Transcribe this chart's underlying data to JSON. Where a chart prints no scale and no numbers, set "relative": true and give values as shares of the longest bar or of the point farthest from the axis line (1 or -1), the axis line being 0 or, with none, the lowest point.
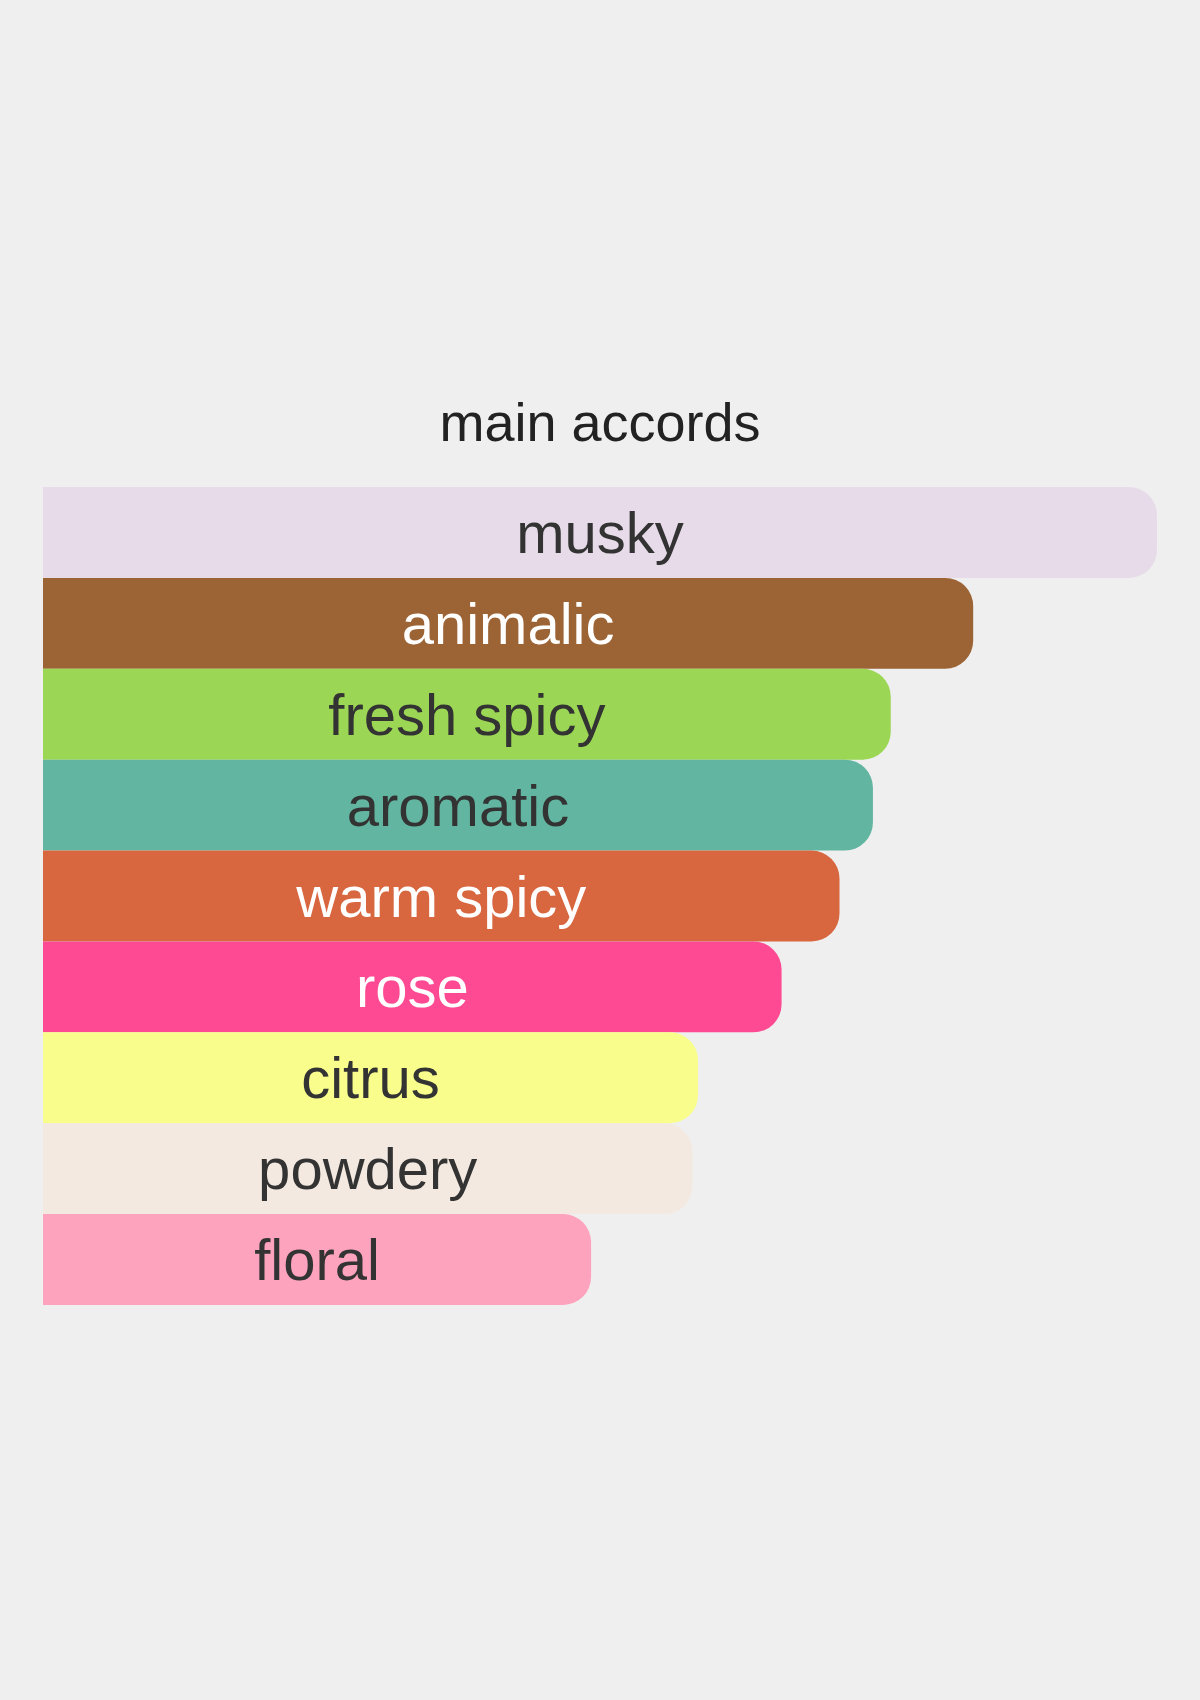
{
  "chart_data": {
    "type": "bar",
    "orientation": "horizontal",
    "relative": true,
    "title": "main accords",
    "categories": [
      "musky",
      "animalic",
      "fresh spicy",
      "aromatic",
      "warm spicy",
      "rose",
      "citrus",
      "powdery",
      "floral"
    ],
    "values": [
      1,
      0.835,
      0.761,
      0.745,
      0.715,
      0.663,
      0.588,
      0.583,
      0.492
    ],
    "colors": [
      "#e7dbea",
      "#9c6335",
      "#9bd654",
      "#62b5a0",
      "#d8663f",
      "#fe4a93",
      "#f9fd8b",
      "#f3e9e0",
      "#fea3bd"
    ]
  }
}
